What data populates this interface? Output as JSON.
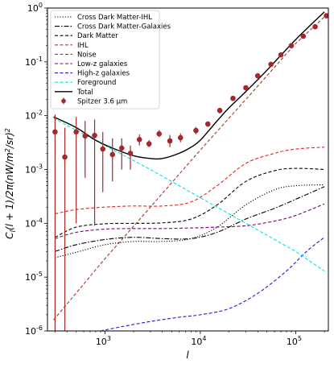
{
  "chart_data": {
    "type": "line",
    "xlabel": "l",
    "ylabel": "C_l(l+1)/2π(nW/m²/sr)²",
    "xscale": "log",
    "yscale": "log",
    "xlim": [
      250,
      220000
    ],
    "ylim": [
      1e-06,
      1
    ],
    "x_tick_labels": [
      "10^3",
      "10^4",
      "10^5"
    ],
    "y_tick_labels": [
      "10^-6",
      "10^-5",
      "10^-4",
      "10^-3",
      "10^-2",
      "10^-1",
      "10^0"
    ],
    "legend_position": "upper-left",
    "grid": false,
    "series": [
      {
        "name": "Cross Dark Matter-IHL",
        "color": "#000000",
        "dash": "dotted",
        "x": [
          300,
          500,
          1000,
          2000,
          4000,
          8000,
          15000,
          30000,
          60000,
          100000,
          200000
        ],
        "y": [
          2.3e-05,
          2.9e-05,
          4e-05,
          4.6e-05,
          4.6e-05,
          5.2e-05,
          8.5e-05,
          0.00022,
          0.00042,
          0.0005,
          0.00052
        ]
      },
      {
        "name": "Cross Dark Matter-Galaxies",
        "color": "#000000",
        "dash": "dashdot",
        "x": [
          300,
          500,
          1000,
          2000,
          4000,
          8000,
          15000,
          30000,
          60000,
          100000,
          200000
        ],
        "y": [
          3e-05,
          4e-05,
          5e-05,
          5.5e-05,
          5.2e-05,
          5.2e-05,
          6.8e-05,
          0.00012,
          0.00019,
          0.00028,
          0.00048
        ]
      },
      {
        "name": "Dark Matter",
        "color": "#000000",
        "dash": "dashed",
        "x": [
          300,
          500,
          1000,
          2000,
          4000,
          8000,
          15000,
          30000,
          60000,
          100000,
          200000
        ],
        "y": [
          5.5e-05,
          8.5e-05,
          9.8e-05,
          0.0001,
          0.000102,
          0.00012,
          0.00022,
          0.0006,
          0.00095,
          0.00105,
          0.001
        ]
      },
      {
        "name": "IHL",
        "color": "#e8221d",
        "dash": "dashed",
        "x": [
          300,
          500,
          1000,
          2000,
          4000,
          8000,
          15000,
          30000,
          60000,
          100000,
          200000
        ],
        "y": [
          0.00015,
          0.00018,
          0.0002,
          0.00021,
          0.00021,
          0.00025,
          0.0005,
          0.0013,
          0.002,
          0.0024,
          0.0026
        ]
      },
      {
        "name": "Noise",
        "color": "#a23a2c",
        "dash": "dashed",
        "x": [
          290,
          1000,
          3000,
          10000,
          30000,
          100000,
          220000
        ],
        "y": [
          1.6e-06,
          2.2e-05,
          0.0002,
          0.0023,
          0.02,
          0.22,
          0.8
        ]
      },
      {
        "name": "Low-z galaxies",
        "color": "#800080",
        "dash": "dashed",
        "x": [
          300,
          500,
          1000,
          2000,
          4000,
          8000,
          15000,
          30000,
          60000,
          100000,
          200000
        ],
        "y": [
          5.2e-05,
          6.8e-05,
          7.8e-05,
          8e-05,
          8e-05,
          8.2e-05,
          8.5e-05,
          9e-05,
          0.00011,
          0.00014,
          0.00023
        ]
      },
      {
        "name": "High-z galaxies",
        "color": "#1c1cd6",
        "dash": "dashed",
        "x": [
          900,
          1500,
          3000,
          6000,
          10000,
          20000,
          40000,
          80000,
          130000,
          200000
        ],
        "y": [
          1e-06,
          1.2e-06,
          1.5e-06,
          1.8e-06,
          2e-06,
          2.6e-06,
          5e-06,
          1.3e-05,
          3e-05,
          5.5e-05
        ]
      },
      {
        "name": "Foreground",
        "color": "#00e5e5",
        "dash": "dashed",
        "x": [
          290,
          1000,
          3000,
          10000,
          30000,
          100000,
          200000
        ],
        "y": [
          0.009,
          0.0028,
          0.001,
          0.0003,
          0.0001,
          3e-05,
          1.3e-05
        ]
      },
      {
        "name": "Total",
        "color": "#000000",
        "dash": "solid",
        "x": [
          290,
          500,
          800,
          1200,
          2000,
          3000,
          4000,
          6000,
          8000,
          10000,
          15000,
          20000,
          30000,
          50000,
          100000,
          200000
        ],
        "y": [
          0.0095,
          0.006,
          0.0035,
          0.0025,
          0.0018,
          0.0016,
          0.0016,
          0.002,
          0.0026,
          0.0035,
          0.008,
          0.014,
          0.028,
          0.07,
          0.26,
          0.85
        ]
      }
    ],
    "points": {
      "name": "Spitzer 3.6 μm",
      "color": "#a5282a",
      "x": [
        300,
        380,
        500,
        620,
        780,
        950,
        1200,
        1500,
        1850,
        2300,
        2900,
        3700,
        4800,
        6200,
        9000,
        12000,
        16000,
        22000,
        30000,
        40000,
        55000,
        70000,
        90000,
        120000,
        160000,
        210000
      ],
      "y": [
        0.005,
        0.0017,
        0.005,
        0.0042,
        0.0043,
        0.0024,
        0.0019,
        0.0025,
        0.002,
        0.0036,
        0.003,
        0.0046,
        0.0034,
        0.0039,
        0.0053,
        0.007,
        0.0125,
        0.021,
        0.033,
        0.055,
        0.09,
        0.135,
        0.2,
        0.3,
        0.45,
        0.72
      ],
      "ylow": [
        1e-06,
        1e-06,
        0.0001,
        0.0007,
        9e-05,
        0.00038,
        0.0006,
        0.001,
        0.001,
        0.0028,
        0.0026,
        0.004,
        0.0026,
        0.0032,
        0.0045,
        0.0062,
        0.011,
        0.019,
        0.03,
        0.05,
        0.083,
        0.125,
        0.185,
        0.28,
        0.42,
        0.68
      ],
      "yhigh": [
        0.0105,
        0.006,
        0.0095,
        0.008,
        0.0085,
        0.005,
        0.0038,
        0.0038,
        0.0028,
        0.0045,
        0.0035,
        0.0054,
        0.0044,
        0.0047,
        0.0062,
        0.0078,
        0.014,
        0.023,
        0.036,
        0.06,
        0.098,
        0.145,
        0.215,
        0.32,
        0.48,
        0.76
      ]
    }
  }
}
